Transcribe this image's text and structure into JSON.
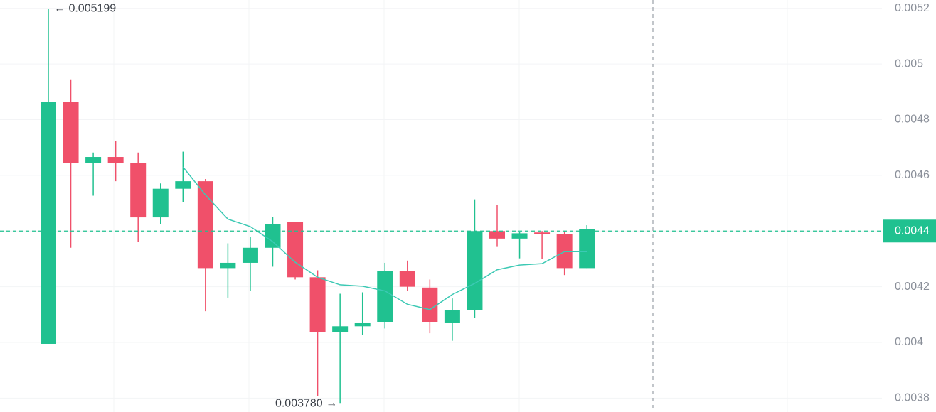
{
  "chart_data": {
    "type": "candlestick",
    "up_color": "#20c190",
    "down_color": "#f0506a",
    "open": [
      0.003995,
      0.004864,
      0.004644,
      0.004666,
      0.004644,
      0.004449,
      0.004552,
      0.004579,
      0.004267,
      0.004286,
      0.00434,
      0.004432,
      0.004234,
      0.004036,
      0.004058,
      0.004074,
      0.004256,
      0.004197,
      0.004069,
      0.004115,
      0.0044,
      0.004373,
      0.004395,
      0.004389,
      0.004267
    ],
    "high": [
      0.005199,
      0.004945,
      0.004682,
      0.004723,
      0.004682,
      0.004571,
      0.004685,
      0.004587,
      0.004356,
      0.004378,
      0.004451,
      0.004432,
      0.004259,
      0.004175,
      0.00418,
      0.004286,
      0.004294,
      0.004226,
      0.004158,
      0.004514,
      0.004495,
      0.004397,
      0.0044,
      0.0044,
      0.004421
    ],
    "low": [
      0.003995,
      0.00434,
      0.004527,
      0.004579,
      0.004362,
      0.004424,
      0.004503,
      0.004112,
      0.004161,
      0.004185,
      0.004272,
      0.004226,
      0.003806,
      0.00378,
      0.004028,
      0.00405,
      0.004185,
      0.004033,
      0.004006,
      0.004088,
      0.004343,
      0.004302,
      0.0043,
      0.004242,
      0.004267
    ],
    "close": [
      0.004864,
      0.004644,
      0.004666,
      0.004644,
      0.004449,
      0.004552,
      0.004579,
      0.004267,
      0.004286,
      0.00434,
      0.004424,
      0.004234,
      0.004036,
      0.004058,
      0.004069,
      0.004256,
      0.0042,
      0.004074,
      0.004115,
      0.0044,
      0.004373,
      0.004392,
      0.004389,
      0.004267,
      0.004408
    ],
    "ma": {
      "color": "#3cc9b4",
      "values": [
        null,
        null,
        null,
        null,
        null,
        null,
        0.00463,
        0.00453,
        0.004443,
        0.004416,
        0.004362,
        0.004288,
        0.004234,
        0.004207,
        0.004202,
        0.004185,
        0.004137,
        0.004118,
        0.004172,
        0.004212,
        0.004261,
        0.004278,
        0.004283,
        0.004326,
        0.004326
      ]
    },
    "ylim": [
      0.00375,
      0.00523
    ],
    "yticks": [
      0.0038,
      0.004,
      0.0042,
      0.0044,
      0.0046,
      0.0048,
      0.005,
      0.0052
    ],
    "grid": true,
    "current_price": 0.0044,
    "high_annotation": "← 0.005199",
    "low_annotation": "0.003780 →"
  }
}
